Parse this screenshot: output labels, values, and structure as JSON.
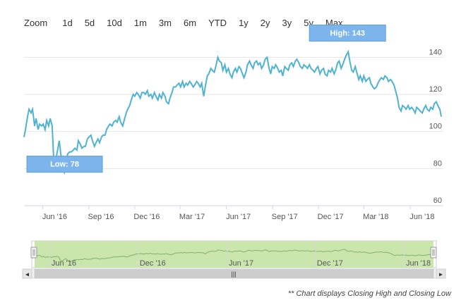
{
  "zoom": {
    "label": "Zoom",
    "buttons": [
      "1d",
      "5d",
      "10d",
      "1m",
      "3m",
      "6m",
      "YTD",
      "1y",
      "2y",
      "3y",
      "5y",
      "Max"
    ]
  },
  "chart_data": {
    "type": "line",
    "series": [
      {
        "values": [
          [
            "2016-04-25",
            97
          ],
          [
            "2016-04-28",
            101
          ],
          [
            "2016-05-02",
            108
          ],
          [
            "2016-05-05",
            112
          ],
          [
            "2016-05-09",
            110
          ],
          [
            "2016-05-12",
            112
          ],
          [
            "2016-05-16",
            103
          ],
          [
            "2016-05-19",
            107
          ],
          [
            "2016-05-23",
            101
          ],
          [
            "2016-05-26",
            104
          ],
          [
            "2016-05-30",
            103
          ],
          [
            "2016-06-02",
            104
          ],
          [
            "2016-06-06",
            101
          ],
          [
            "2016-06-09",
            106
          ],
          [
            "2016-06-13",
            103
          ],
          [
            "2016-06-16",
            107
          ],
          [
            "2016-06-20",
            103
          ],
          [
            "2016-06-23",
            85
          ],
          [
            "2016-06-27",
            84
          ],
          [
            "2016-06-30",
            89
          ],
          [
            "2016-07-04",
            95
          ],
          [
            "2016-07-07",
            88
          ],
          [
            "2016-07-11",
            80
          ],
          [
            "2016-07-14",
            78
          ],
          [
            "2016-07-18",
            85
          ],
          [
            "2016-07-21",
            88
          ],
          [
            "2016-07-25",
            89
          ],
          [
            "2016-07-28",
            89
          ],
          [
            "2016-08-01",
            90
          ],
          [
            "2016-08-04",
            91
          ],
          [
            "2016-08-08",
            90
          ],
          [
            "2016-08-11",
            95
          ],
          [
            "2016-08-15",
            93
          ],
          [
            "2016-08-18",
            91
          ],
          [
            "2016-08-22",
            92
          ],
          [
            "2016-08-25",
            92
          ],
          [
            "2016-08-29",
            96
          ],
          [
            "2016-09-01",
            97
          ],
          [
            "2016-09-05",
            98
          ],
          [
            "2016-09-08",
            95
          ],
          [
            "2016-09-12",
            92
          ],
          [
            "2016-09-15",
            94
          ],
          [
            "2016-09-19",
            96
          ],
          [
            "2016-09-22",
            94
          ],
          [
            "2016-09-26",
            97
          ],
          [
            "2016-09-29",
            98
          ],
          [
            "2016-10-03",
            98
          ],
          [
            "2016-10-06",
            101
          ],
          [
            "2016-10-10",
            103
          ],
          [
            "2016-10-13",
            104
          ],
          [
            "2016-10-17",
            103
          ],
          [
            "2016-10-20",
            105
          ],
          [
            "2016-10-24",
            106
          ],
          [
            "2016-10-27",
            105
          ],
          [
            "2016-10-31",
            108
          ],
          [
            "2016-11-03",
            105
          ],
          [
            "2016-11-07",
            103
          ],
          [
            "2016-11-10",
            106
          ],
          [
            "2016-11-14",
            110
          ],
          [
            "2016-11-17",
            112
          ],
          [
            "2016-11-21",
            114
          ],
          [
            "2016-11-24",
            117
          ],
          [
            "2016-11-28",
            120
          ],
          [
            "2016-12-01",
            119
          ],
          [
            "2016-12-05",
            121
          ],
          [
            "2016-12-08",
            120
          ],
          [
            "2016-12-12",
            118
          ],
          [
            "2016-12-15",
            121
          ],
          [
            "2016-12-19",
            121
          ],
          [
            "2016-12-22",
            120
          ],
          [
            "2016-12-26",
            122
          ],
          [
            "2016-12-29",
            119
          ],
          [
            "2017-01-02",
            120
          ],
          [
            "2017-01-05",
            118
          ],
          [
            "2017-01-09",
            121
          ],
          [
            "2017-01-12",
            119
          ],
          [
            "2017-01-16",
            117
          ],
          [
            "2017-01-19",
            120
          ],
          [
            "2017-01-23",
            118
          ],
          [
            "2017-01-26",
            121
          ],
          [
            "2017-01-30",
            119
          ],
          [
            "2017-02-02",
            116
          ],
          [
            "2017-02-06",
            115
          ],
          [
            "2017-02-09",
            118
          ],
          [
            "2017-02-13",
            121
          ],
          [
            "2017-02-16",
            124
          ],
          [
            "2017-02-20",
            124
          ],
          [
            "2017-02-23",
            125
          ],
          [
            "2017-02-27",
            126
          ],
          [
            "2017-03-02",
            124
          ],
          [
            "2017-03-06",
            127
          ],
          [
            "2017-03-09",
            124
          ],
          [
            "2017-03-13",
            126
          ],
          [
            "2017-03-16",
            125
          ],
          [
            "2017-03-20",
            127
          ],
          [
            "2017-03-23",
            126
          ],
          [
            "2017-03-27",
            124
          ],
          [
            "2017-03-30",
            125
          ],
          [
            "2017-04-03",
            127
          ],
          [
            "2017-04-06",
            126
          ],
          [
            "2017-04-10",
            124
          ],
          [
            "2017-04-13",
            126
          ],
          [
            "2017-04-17",
            119
          ],
          [
            "2017-04-20",
            124
          ],
          [
            "2017-04-24",
            130
          ],
          [
            "2017-04-27",
            131
          ],
          [
            "2017-05-01",
            134
          ],
          [
            "2017-05-04",
            133
          ],
          [
            "2017-05-08",
            132
          ],
          [
            "2017-05-11",
            135
          ],
          [
            "2017-05-15",
            140
          ],
          [
            "2017-05-18",
            138
          ],
          [
            "2017-05-22",
            137
          ],
          [
            "2017-05-25",
            133
          ],
          [
            "2017-05-29",
            136
          ],
          [
            "2017-06-01",
            132
          ],
          [
            "2017-06-05",
            134
          ],
          [
            "2017-06-08",
            131
          ],
          [
            "2017-06-12",
            129
          ],
          [
            "2017-06-15",
            132
          ],
          [
            "2017-06-19",
            134
          ],
          [
            "2017-06-22",
            132
          ],
          [
            "2017-06-26",
            135
          ],
          [
            "2017-06-29",
            134
          ],
          [
            "2017-07-03",
            131
          ],
          [
            "2017-07-06",
            129
          ],
          [
            "2017-07-10",
            132
          ],
          [
            "2017-07-13",
            136
          ],
          [
            "2017-07-17",
            138
          ],
          [
            "2017-07-20",
            136
          ],
          [
            "2017-07-24",
            134
          ],
          [
            "2017-07-27",
            137
          ],
          [
            "2017-07-31",
            138
          ],
          [
            "2017-08-03",
            136
          ],
          [
            "2017-08-07",
            137
          ],
          [
            "2017-08-10",
            134
          ],
          [
            "2017-08-14",
            136
          ],
          [
            "2017-08-17",
            139
          ],
          [
            "2017-08-21",
            140
          ],
          [
            "2017-08-24",
            135
          ],
          [
            "2017-08-28",
            131
          ],
          [
            "2017-08-31",
            135
          ],
          [
            "2017-09-04",
            134
          ],
          [
            "2017-09-07",
            136
          ],
          [
            "2017-09-11",
            134
          ],
          [
            "2017-09-14",
            132
          ],
          [
            "2017-09-18",
            133
          ],
          [
            "2017-09-21",
            130
          ],
          [
            "2017-09-25",
            135
          ],
          [
            "2017-09-28",
            134
          ],
          [
            "2017-10-02",
            133
          ],
          [
            "2017-10-05",
            136
          ],
          [
            "2017-10-09",
            137
          ],
          [
            "2017-10-12",
            135
          ],
          [
            "2017-10-16",
            138
          ],
          [
            "2017-10-19",
            139
          ],
          [
            "2017-10-23",
            137
          ],
          [
            "2017-10-26",
            135
          ],
          [
            "2017-10-30",
            134
          ],
          [
            "2017-11-02",
            136
          ],
          [
            "2017-11-06",
            135
          ],
          [
            "2017-11-09",
            134
          ],
          [
            "2017-11-13",
            136
          ],
          [
            "2017-11-16",
            134
          ],
          [
            "2017-11-20",
            133
          ],
          [
            "2017-11-23",
            132
          ],
          [
            "2017-11-27",
            134
          ],
          [
            "2017-11-30",
            135
          ],
          [
            "2017-12-04",
            131
          ],
          [
            "2017-12-07",
            133
          ],
          [
            "2017-12-11",
            134
          ],
          [
            "2017-12-14",
            131
          ],
          [
            "2017-12-18",
            130
          ],
          [
            "2017-12-21",
            133
          ],
          [
            "2017-12-25",
            132
          ],
          [
            "2017-12-28",
            134
          ],
          [
            "2018-01-01",
            131
          ],
          [
            "2018-01-04",
            133
          ],
          [
            "2018-01-08",
            137
          ],
          [
            "2018-01-11",
            138
          ],
          [
            "2018-01-15",
            134
          ],
          [
            "2018-01-18",
            136
          ],
          [
            "2018-01-22",
            139
          ],
          [
            "2018-01-25",
            141
          ],
          [
            "2018-01-29",
            143
          ],
          [
            "2018-02-01",
            138
          ],
          [
            "2018-02-05",
            133
          ],
          [
            "2018-02-08",
            132
          ],
          [
            "2018-02-12",
            135
          ],
          [
            "2018-02-15",
            132
          ],
          [
            "2018-02-19",
            128
          ],
          [
            "2018-02-22",
            130
          ],
          [
            "2018-02-26",
            127
          ],
          [
            "2018-03-01",
            130
          ],
          [
            "2018-03-05",
            127
          ],
          [
            "2018-03-08",
            128
          ],
          [
            "2018-03-12",
            129
          ],
          [
            "2018-03-15",
            126
          ],
          [
            "2018-03-19",
            124
          ],
          [
            "2018-03-22",
            123
          ],
          [
            "2018-03-26",
            124
          ],
          [
            "2018-03-29",
            126
          ],
          [
            "2018-04-02",
            128
          ],
          [
            "2018-04-05",
            129
          ],
          [
            "2018-04-09",
            128
          ],
          [
            "2018-04-12",
            130
          ],
          [
            "2018-04-16",
            129
          ],
          [
            "2018-04-19",
            127
          ],
          [
            "2018-04-23",
            128
          ],
          [
            "2018-04-26",
            127
          ],
          [
            "2018-04-30",
            125
          ],
          [
            "2018-05-03",
            122
          ],
          [
            "2018-05-07",
            118
          ],
          [
            "2018-05-10",
            113
          ],
          [
            "2018-05-14",
            111
          ],
          [
            "2018-05-17",
            114
          ],
          [
            "2018-05-21",
            113
          ],
          [
            "2018-05-24",
            112
          ],
          [
            "2018-05-28",
            114
          ],
          [
            "2018-05-31",
            112
          ],
          [
            "2018-06-04",
            113
          ],
          [
            "2018-06-07",
            112
          ],
          [
            "2018-06-11",
            110
          ],
          [
            "2018-06-14",
            113
          ],
          [
            "2018-06-18",
            112
          ],
          [
            "2018-06-21",
            111
          ],
          [
            "2018-06-25",
            110
          ],
          [
            "2018-06-28",
            112
          ],
          [
            "2018-07-02",
            114
          ],
          [
            "2018-07-05",
            112
          ],
          [
            "2018-07-09",
            111
          ],
          [
            "2018-07-12",
            113
          ],
          [
            "2018-07-16",
            112
          ],
          [
            "2018-07-19",
            115
          ],
          [
            "2018-07-23",
            116
          ],
          [
            "2018-07-26",
            114
          ],
          [
            "2018-07-30",
            112
          ],
          [
            "2018-08-02",
            108
          ]
        ]
      }
    ],
    "ylim": [
      60,
      150
    ],
    "y_ticks": [
      60,
      80,
      100,
      120,
      140
    ],
    "x_ticks": [
      {
        "label": "Jun '16",
        "date": "2016-06-01"
      },
      {
        "label": "Sep '16",
        "date": "2016-09-01"
      },
      {
        "label": "Dec '16",
        "date": "2016-12-01"
      },
      {
        "label": "Mar '17",
        "date": "2017-03-01"
      },
      {
        "label": "Jun '17",
        "date": "2017-06-01"
      },
      {
        "label": "Sep '17",
        "date": "2017-09-01"
      },
      {
        "label": "Dec '17",
        "date": "2017-12-01"
      },
      {
        "label": "Mar '18",
        "date": "2018-03-01"
      },
      {
        "label": "Jun '18",
        "date": "2018-06-01"
      }
    ],
    "x_range": [
      "2016-04-25",
      "2018-08-06"
    ],
    "grid": "horizontal",
    "annotations": [
      {
        "text": "High: 143",
        "x": "2018-01-29",
        "y": 143
      },
      {
        "text": "Low: 78",
        "x": "2016-07-14",
        "y": 78
      }
    ],
    "colors": {
      "line": "#4fb3cf",
      "flag": "#7cb5ec",
      "navigator_fill": "#c5e3a4",
      "navigator_line": "#7fb26a"
    }
  },
  "navigator": {
    "x_ticks": [
      {
        "label": "Jun '16",
        "date": "2016-06-01"
      },
      {
        "label": "Dec '16",
        "date": "2016-12-01"
      },
      {
        "label": "Jun '17",
        "date": "2017-06-01"
      },
      {
        "label": "Dec '17",
        "date": "2017-12-01"
      },
      {
        "label": "Jun '18",
        "date": "2018-06-01"
      }
    ],
    "scrollbar_grip": "|||",
    "left_arrow": "◂",
    "right_arrow": "▸"
  },
  "footnote": "** Chart displays Closing High and Closing Low"
}
